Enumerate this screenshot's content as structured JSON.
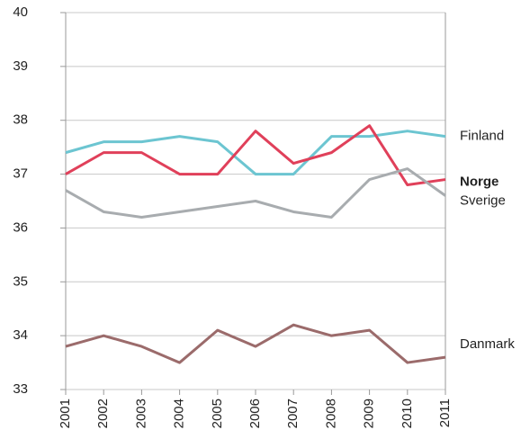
{
  "chart_data": {
    "type": "line",
    "x": [
      2001,
      2002,
      2003,
      2004,
      2005,
      2006,
      2007,
      2008,
      2009,
      2010,
      2011
    ],
    "xlim": [
      2001,
      2011
    ],
    "xticks": [
      2001,
      2002,
      2003,
      2004,
      2005,
      2006,
      2007,
      2008,
      2009,
      2010,
      2011
    ],
    "ylim": [
      33,
      40
    ],
    "yticks": [
      33,
      34,
      35,
      36,
      37,
      38,
      39,
      40
    ],
    "grid": true,
    "series": [
      {
        "name": "Finland",
        "color": "#6cc5d1",
        "values": [
          37.4,
          37.6,
          37.6,
          37.7,
          37.6,
          37.0,
          37.0,
          37.7,
          37.7,
          37.8,
          37.7
        ]
      },
      {
        "name": "Norge",
        "color": "#e0405a",
        "values": [
          37.0,
          37.4,
          37.4,
          37.0,
          37.0,
          37.8,
          37.2,
          37.4,
          37.9,
          36.8,
          36.9
        ]
      },
      {
        "name": "Sverige",
        "color": "#a8acaf",
        "values": [
          36.7,
          36.3,
          36.2,
          36.3,
          36.4,
          36.5,
          36.3,
          36.2,
          36.9,
          37.1,
          36.6
        ]
      },
      {
        "name": "Danmark",
        "color": "#9b6b6b",
        "values": [
          33.8,
          34.0,
          33.8,
          33.5,
          34.1,
          33.8,
          34.2,
          34.0,
          34.1,
          33.5,
          33.6
        ]
      }
    ]
  }
}
